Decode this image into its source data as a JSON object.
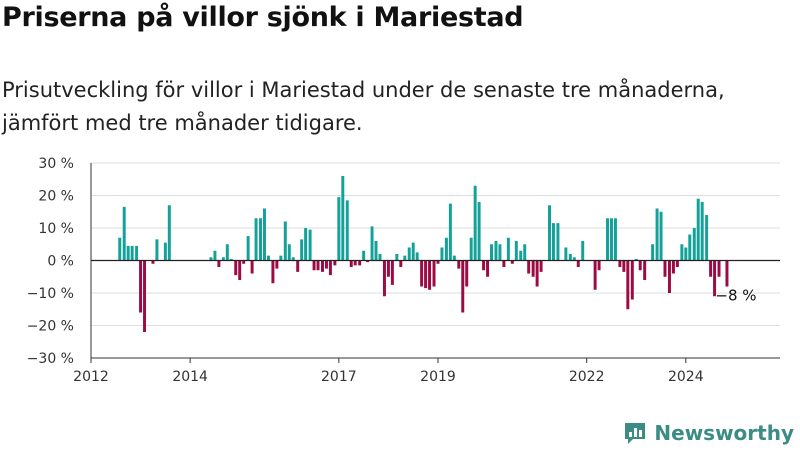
{
  "header": {
    "title": "Priserna på villor sjönk i Mariestad",
    "subtitle": "Prisutveckling för villor i Mariestad under de senaste tre månaderna, jämfört med tre månader tidigare."
  },
  "brand": {
    "name": "Newsworthy"
  },
  "colors": {
    "positive": "#14a19a",
    "negative": "#9e0a43",
    "grid": "#dedede",
    "axis": "#333333"
  },
  "chart_data": {
    "type": "bar",
    "ylim": [
      -30,
      30
    ],
    "xlim": [
      2012.0,
      2025.9
    ],
    "y_ticks": [
      30,
      20,
      10,
      0,
      -10,
      -20,
      -30
    ],
    "y_tick_labels": [
      "30 %",
      "20 %",
      "10 %",
      "0 %",
      "−10 %",
      "−20 %",
      "−30 %"
    ],
    "x_ticks": [
      2012,
      2014,
      2017,
      2019,
      2022,
      2024
    ],
    "x_tick_labels": [
      "2012",
      "2014",
      "2017",
      "2019",
      "2022",
      "2024"
    ],
    "grid": true,
    "annotation": {
      "text": "−8 %",
      "x": 2024.83,
      "y": -8
    },
    "points": [
      {
        "x": 2012.58,
        "y": 7
      },
      {
        "x": 2012.67,
        "y": 16.5
      },
      {
        "x": 2012.75,
        "y": 4.5
      },
      {
        "x": 2012.83,
        "y": 4.5
      },
      {
        "x": 2012.92,
        "y": 4.5
      },
      {
        "x": 2013.0,
        "y": -16
      },
      {
        "x": 2013.08,
        "y": -22
      },
      {
        "x": 2013.25,
        "y": -1
      },
      {
        "x": 2013.33,
        "y": 6.5
      },
      {
        "x": 2013.5,
        "y": 5.5
      },
      {
        "x": 2013.58,
        "y": 17
      },
      {
        "x": 2014.42,
        "y": 1
      },
      {
        "x": 2014.5,
        "y": 3
      },
      {
        "x": 2014.58,
        "y": -2
      },
      {
        "x": 2014.67,
        "y": 1
      },
      {
        "x": 2014.75,
        "y": 5
      },
      {
        "x": 2014.83,
        "y": 0.5
      },
      {
        "x": 2014.92,
        "y": -4.5
      },
      {
        "x": 2015.0,
        "y": -6
      },
      {
        "x": 2015.08,
        "y": -1
      },
      {
        "x": 2015.17,
        "y": 7.5
      },
      {
        "x": 2015.25,
        "y": -4
      },
      {
        "x": 2015.33,
        "y": 13
      },
      {
        "x": 2015.42,
        "y": 13
      },
      {
        "x": 2015.5,
        "y": 16
      },
      {
        "x": 2015.58,
        "y": 1.5
      },
      {
        "x": 2015.67,
        "y": -7
      },
      {
        "x": 2015.75,
        "y": -2.5
      },
      {
        "x": 2015.83,
        "y": 1.5
      },
      {
        "x": 2015.92,
        "y": 12
      },
      {
        "x": 2016.0,
        "y": 5
      },
      {
        "x": 2016.08,
        "y": 1
      },
      {
        "x": 2016.17,
        "y": -3.5
      },
      {
        "x": 2016.25,
        "y": 6.5
      },
      {
        "x": 2016.33,
        "y": 10
      },
      {
        "x": 2016.42,
        "y": 9.5
      },
      {
        "x": 2016.5,
        "y": -3
      },
      {
        "x": 2016.58,
        "y": -3
      },
      {
        "x": 2016.67,
        "y": -3.5
      },
      {
        "x": 2016.75,
        "y": -2.5
      },
      {
        "x": 2016.83,
        "y": -4.5
      },
      {
        "x": 2016.92,
        "y": -1.5
      },
      {
        "x": 2017.0,
        "y": 19.5
      },
      {
        "x": 2017.08,
        "y": 26
      },
      {
        "x": 2017.17,
        "y": 18.5
      },
      {
        "x": 2017.25,
        "y": -2
      },
      {
        "x": 2017.33,
        "y": -1.5
      },
      {
        "x": 2017.42,
        "y": -1.5
      },
      {
        "x": 2017.5,
        "y": 3
      },
      {
        "x": 2017.58,
        "y": -0.5
      },
      {
        "x": 2017.67,
        "y": 10.5
      },
      {
        "x": 2017.75,
        "y": 6
      },
      {
        "x": 2017.83,
        "y": 2
      },
      {
        "x": 2017.92,
        "y": -11
      },
      {
        "x": 2018.0,
        "y": -5
      },
      {
        "x": 2018.08,
        "y": -7.5
      },
      {
        "x": 2018.17,
        "y": 2
      },
      {
        "x": 2018.25,
        "y": -2
      },
      {
        "x": 2018.33,
        "y": 1.5
      },
      {
        "x": 2018.42,
        "y": 4
      },
      {
        "x": 2018.5,
        "y": 5.5
      },
      {
        "x": 2018.58,
        "y": 2.5
      },
      {
        "x": 2018.67,
        "y": -8
      },
      {
        "x": 2018.75,
        "y": -8.5
      },
      {
        "x": 2018.83,
        "y": -9
      },
      {
        "x": 2018.92,
        "y": -8
      },
      {
        "x": 2019.0,
        "y": -1
      },
      {
        "x": 2019.08,
        "y": 4
      },
      {
        "x": 2019.17,
        "y": 7
      },
      {
        "x": 2019.25,
        "y": 17.5
      },
      {
        "x": 2019.33,
        "y": 1.5
      },
      {
        "x": 2019.42,
        "y": -2.5
      },
      {
        "x": 2019.5,
        "y": -16
      },
      {
        "x": 2019.58,
        "y": -8
      },
      {
        "x": 2019.67,
        "y": 7
      },
      {
        "x": 2019.75,
        "y": 23
      },
      {
        "x": 2019.83,
        "y": 18
      },
      {
        "x": 2019.92,
        "y": -3
      },
      {
        "x": 2020.0,
        "y": -5
      },
      {
        "x": 2020.08,
        "y": 5
      },
      {
        "x": 2020.17,
        "y": 6
      },
      {
        "x": 2020.25,
        "y": 5
      },
      {
        "x": 2020.33,
        "y": -2
      },
      {
        "x": 2020.42,
        "y": 7
      },
      {
        "x": 2020.5,
        "y": -1
      },
      {
        "x": 2020.58,
        "y": 6
      },
      {
        "x": 2020.67,
        "y": 3
      },
      {
        "x": 2020.75,
        "y": 5
      },
      {
        "x": 2020.83,
        "y": -4
      },
      {
        "x": 2020.92,
        "y": -5
      },
      {
        "x": 2021.0,
        "y": -8
      },
      {
        "x": 2021.08,
        "y": -3.5
      },
      {
        "x": 2021.25,
        "y": 17
      },
      {
        "x": 2021.33,
        "y": 11.5
      },
      {
        "x": 2021.42,
        "y": 11.5
      },
      {
        "x": 2021.58,
        "y": 4
      },
      {
        "x": 2021.67,
        "y": 2
      },
      {
        "x": 2021.75,
        "y": 1
      },
      {
        "x": 2021.83,
        "y": -2
      },
      {
        "x": 2021.92,
        "y": 6
      },
      {
        "x": 2022.17,
        "y": -9
      },
      {
        "x": 2022.25,
        "y": -3
      },
      {
        "x": 2022.42,
        "y": 13
      },
      {
        "x": 2022.5,
        "y": 13
      },
      {
        "x": 2022.58,
        "y": 13
      },
      {
        "x": 2022.67,
        "y": -2
      },
      {
        "x": 2022.75,
        "y": -3.5
      },
      {
        "x": 2022.83,
        "y": -15
      },
      {
        "x": 2022.92,
        "y": -12
      },
      {
        "x": 2023.0,
        "y": 0.5
      },
      {
        "x": 2023.08,
        "y": -3
      },
      {
        "x": 2023.17,
        "y": -6
      },
      {
        "x": 2023.33,
        "y": 5
      },
      {
        "x": 2023.42,
        "y": 16
      },
      {
        "x": 2023.5,
        "y": 15
      },
      {
        "x": 2023.58,
        "y": -5
      },
      {
        "x": 2023.67,
        "y": -10
      },
      {
        "x": 2023.75,
        "y": -4
      },
      {
        "x": 2023.83,
        "y": -2
      },
      {
        "x": 2023.92,
        "y": 5
      },
      {
        "x": 2024.0,
        "y": 4
      },
      {
        "x": 2024.08,
        "y": 8
      },
      {
        "x": 2024.17,
        "y": 10
      },
      {
        "x": 2024.25,
        "y": 19
      },
      {
        "x": 2024.33,
        "y": 18
      },
      {
        "x": 2024.42,
        "y": 14
      },
      {
        "x": 2024.5,
        "y": -5
      },
      {
        "x": 2024.58,
        "y": -11
      },
      {
        "x": 2024.67,
        "y": -5
      },
      {
        "x": 2024.83,
        "y": -8
      }
    ]
  }
}
